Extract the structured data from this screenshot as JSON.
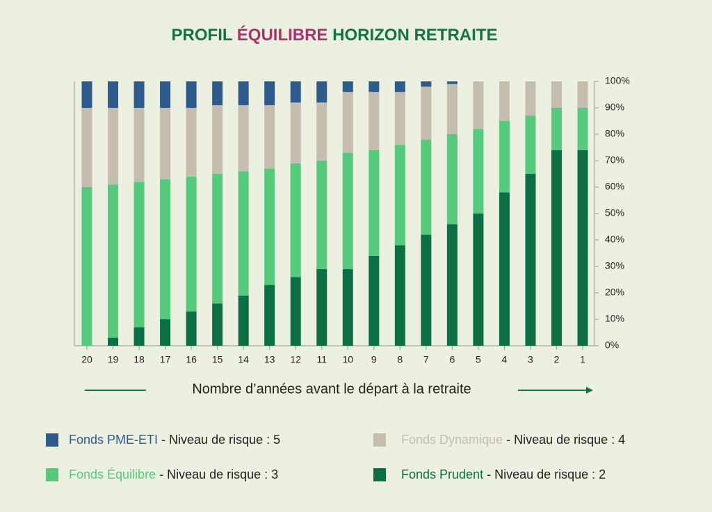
{
  "chart_data": {
    "type": "stacked_bar",
    "title": {
      "parts": [
        "PROFIL ",
        "ÉQUILIBRE",
        " HORIZON RETRAITE"
      ],
      "colors": [
        "#137246",
        "#a8336e",
        "#137246"
      ]
    },
    "x_label": "Nombre d’années avant le départ à la retraite",
    "categories": [
      "20",
      "19",
      "18",
      "17",
      "16",
      "15",
      "14",
      "13",
      "12",
      "11",
      "10",
      "9",
      "8",
      "7",
      "6",
      "5",
      "4",
      "3",
      "2",
      "1"
    ],
    "series": [
      {
        "name": "Fonds Prudent",
        "risk": "- Niveau de risque : 2",
        "color": "#0b6e45",
        "values": [
          0,
          3,
          7,
          10,
          13,
          16,
          19,
          23,
          26,
          29,
          29,
          34,
          38,
          42,
          46,
          50,
          58,
          65,
          74,
          74
        ]
      },
      {
        "name": "Fonds Équilibre",
        "risk": "- Niveau de risque : 3",
        "color": "#55c97c",
        "values": [
          60,
          58,
          55,
          53,
          51,
          49,
          47,
          44,
          43,
          41,
          44,
          40,
          38,
          36,
          34,
          32,
          27,
          22,
          16,
          16
        ]
      },
      {
        "name": "Fonds Dynamique",
        "risk": "- Niveau de risque : 4",
        "color": "#c5bdaf",
        "values": [
          30,
          29,
          28,
          27,
          26,
          26,
          25,
          24,
          23,
          22,
          23,
          22,
          20,
          20,
          19,
          18,
          15,
          13,
          10,
          10
        ]
      },
      {
        "name": "Fonds PME-ETI",
        "risk": "- Niveau de risque : 5",
        "color": "#2f5b8c",
        "values": [
          10,
          10,
          10,
          10,
          10,
          9,
          9,
          9,
          8,
          8,
          4,
          4,
          4,
          2,
          1,
          0,
          0,
          0,
          0,
          0
        ]
      }
    ],
    "ylim": [
      0,
      100
    ],
    "yticks": [
      {
        "value": 0,
        "label": "0%"
      },
      {
        "value": 10,
        "label": "10%"
      },
      {
        "value": 20,
        "label": "20%"
      },
      {
        "value": 30,
        "label": "30%"
      },
      {
        "value": 40,
        "label": "40%"
      },
      {
        "value": 50,
        "label": "50%"
      },
      {
        "value": 60,
        "label": "60%"
      },
      {
        "value": 70,
        "label": "70%"
      },
      {
        "value": 80,
        "label": "80%"
      },
      {
        "value": 90,
        "label": "90%"
      },
      {
        "value": 100,
        "label": "100%"
      }
    ]
  }
}
